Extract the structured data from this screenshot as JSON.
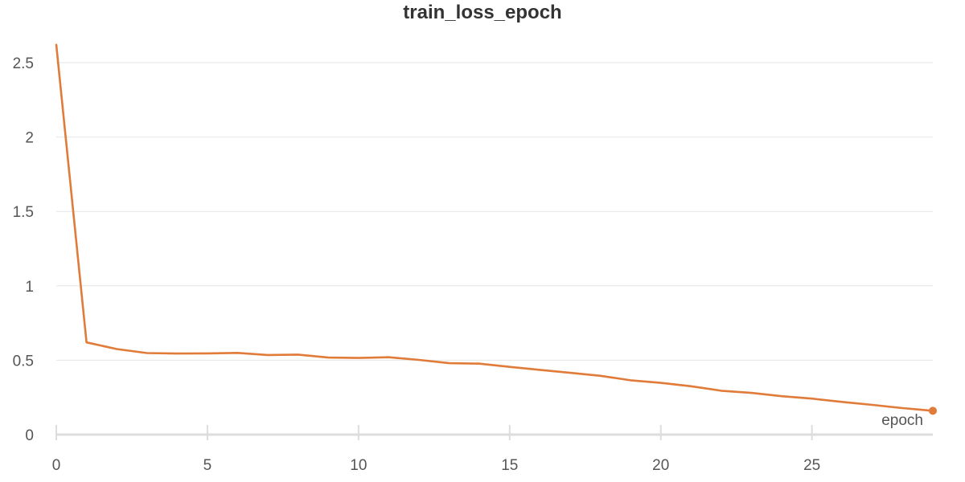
{
  "title": "train_loss_epoch",
  "chart_data": {
    "type": "line",
    "title": "train_loss_epoch",
    "xlabel": "epoch",
    "ylabel": "",
    "xlim": [
      0,
      29
    ],
    "ylim": [
      0,
      2.6
    ],
    "x_ticks": [
      0,
      5,
      10,
      15,
      20,
      25
    ],
    "y_ticks": [
      0,
      0.5,
      1,
      1.5,
      2,
      2.5
    ],
    "x_tick_labels": [
      "0",
      "5",
      "10",
      "15",
      "20",
      "25"
    ],
    "y_tick_labels": [
      "0",
      "0.5",
      "1",
      "1.5",
      "2",
      "2.5"
    ],
    "grid": true,
    "series": [
      {
        "color": "#e07b39",
        "x": [
          0,
          1,
          2,
          3,
          4,
          5,
          6,
          7,
          8,
          9,
          10,
          11,
          12,
          13,
          14,
          15,
          16,
          17,
          18,
          19,
          20,
          21,
          22,
          23,
          24,
          25,
          26,
          27,
          28,
          29
        ],
        "y": [
          2.62,
          0.62,
          0.575,
          0.548,
          0.545,
          0.546,
          0.549,
          0.535,
          0.538,
          0.518,
          0.515,
          0.52,
          0.502,
          0.48,
          0.477,
          0.455,
          0.435,
          0.415,
          0.395,
          0.365,
          0.348,
          0.325,
          0.295,
          0.28,
          0.258,
          0.242,
          0.22,
          0.2,
          0.178,
          0.16
        ]
      }
    ]
  }
}
